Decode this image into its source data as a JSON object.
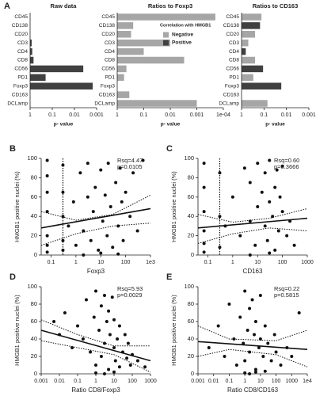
{
  "chart_data": [
    {
      "type": "bar",
      "panel": "A",
      "title": "Raw data",
      "xlabel": "p- value",
      "xlog": true,
      "categories": [
        "CD45",
        "CD138",
        "CD20",
        "CD3",
        "CD4",
        "CD8",
        "CD56",
        "PD1",
        "Foxp3",
        "CD163",
        "DCLamp"
      ],
      "xlim": [
        1,
        0.001
      ],
      "xticks": [
        1,
        0.1,
        0.01,
        0.001
      ],
      "series": [
        {
          "color": "#a6a6a6",
          "values": [
            null,
            null,
            null,
            null,
            null,
            null,
            null,
            null,
            null,
            null,
            null
          ]
        },
        {
          "color": "#404040",
          "values": [
            null,
            null,
            null,
            0.85,
            0.8,
            0.7,
            0.004,
            0.2,
            0.0015,
            null,
            null
          ]
        }
      ]
    },
    {
      "type": "bar",
      "title": "Ratios to Foxp3",
      "xlabel": "p- value",
      "xlog": true,
      "categories": [
        "CD45",
        "CD138",
        "CD20",
        "CD3",
        "CD4",
        "CD8",
        "CD56",
        "PD1",
        "Foxp3",
        "CD163",
        "DCLamp"
      ],
      "xlim": [
        1,
        0.0001
      ],
      "xticks": [
        1,
        0.1,
        0.01,
        0.001,
        {
          "value": 0.0001,
          "label": "1e-04"
        }
      ],
      "legend": {
        "title": "Correlation with HMGB1",
        "items": [
          {
            "name": "Negative",
            "color": "#a6a6a6"
          },
          {
            "name": "Positive",
            "color": "#404040"
          }
        ]
      },
      "series": [
        {
          "color": "#a6a6a6",
          "values": [
            0.0002,
            0.25,
            0.3,
            0.01,
            0.1,
            0.003,
            0.45,
            0.55,
            null,
            0.35,
            0.001
          ]
        },
        {
          "color": "#404040",
          "values": [
            null,
            null,
            null,
            null,
            null,
            null,
            null,
            null,
            null,
            null,
            null
          ]
        }
      ]
    },
    {
      "type": "bar",
      "title": "Ratios to CD163",
      "xlabel": "p- value",
      "xlog": true,
      "categories": [
        "CD45",
        "CD138",
        "CD20",
        "CD3",
        "CD4",
        "CD8",
        "CD56",
        "PD1",
        "Foxp3",
        "CD163",
        "DCLamp"
      ],
      "xlim": [
        1,
        0.001
      ],
      "xticks": [
        1,
        0.1,
        0.01,
        0.001
      ],
      "series": [
        {
          "color": "#a6a6a6",
          "values": [
            0.13,
            null,
            0.25,
            0.5,
            null,
            0.25,
            null,
            0.3,
            null,
            null,
            0.07
          ]
        },
        {
          "color": "#404040",
          "values": [
            null,
            0.15,
            null,
            null,
            0.65,
            null,
            0.11,
            null,
            0.017,
            null,
            null
          ]
        }
      ]
    },
    {
      "type": "scatter",
      "panel": "B",
      "xlabel": "Foxp3",
      "ylabel": "HMGB1 positive nuclei (%)",
      "xlog": true,
      "xlim": [
        0.04,
        1000
      ],
      "xticks": [
        0.1,
        1,
        10,
        100,
        {
          "value": 1000,
          "label": "1e3"
        }
      ],
      "ylim": [
        0,
        100
      ],
      "yticks": [
        0,
        20,
        40,
        60,
        80,
        100
      ],
      "vline": 0.3,
      "annotations": [
        "Rsq=4.47",
        "p=0.0105"
      ],
      "x": [
        0.07,
        0.07,
        0.07,
        0.07,
        0.07,
        0.07,
        0.07,
        0.3,
        0.3,
        0.3,
        0.3,
        0.3,
        0.5,
        0.8,
        1,
        1.5,
        2,
        3,
        3,
        4,
        5,
        6,
        8,
        10,
        12,
        15,
        18,
        20,
        25,
        30,
        40,
        50,
        60,
        70,
        80,
        100,
        150,
        200,
        300,
        500,
        2,
        10,
        50
      ],
      "y": [
        98,
        82,
        65,
        45,
        20,
        10,
        3,
        93,
        65,
        40,
        15,
        5,
        30,
        55,
        10,
        85,
        25,
        95,
        60,
        15,
        45,
        70,
        5,
        88,
        35,
        62,
        20,
        95,
        50,
        8,
        75,
        30,
        90,
        55,
        15,
        65,
        40,
        85,
        25,
        98,
        0,
        2,
        1
      ],
      "fit": {
        "x": [
          0.04,
          1000
        ],
        "y": [
          28,
          48
        ]
      },
      "ci_upper": {
        "x": [
          0.04,
          1,
          30,
          1000
        ],
        "y": [
          45,
          36,
          42,
          62
        ]
      },
      "ci_lower": {
        "x": [
          0.04,
          1,
          30,
          1000
        ],
        "y": [
          10,
          22,
          30,
          33
        ]
      }
    },
    {
      "type": "scatter",
      "panel": "C",
      "xlabel": "CD163",
      "ylabel": "HMGB1 positive nuclei (%)",
      "xlog": true,
      "xlim": [
        0.04,
        1000
      ],
      "xticks": [
        0.1,
        1,
        10,
        100,
        1000
      ],
      "ylim": [
        0,
        100
      ],
      "yticks": [
        0,
        20,
        40,
        60,
        80,
        100
      ],
      "vline": 0.3,
      "annotations": [
        "Rsq=0.60",
        "p=0.3666"
      ],
      "x": [
        0.07,
        0.07,
        0.07,
        0.07,
        0.07,
        0.07,
        0.3,
        0.3,
        0.3,
        1,
        2,
        3,
        5,
        5,
        8,
        10,
        10,
        15,
        20,
        20,
        25,
        30,
        30,
        40,
        50,
        50,
        60,
        70,
        80,
        100,
        100,
        150,
        200,
        300,
        5,
        30,
        0.5
      ],
      "y": [
        95,
        70,
        45,
        25,
        12,
        3,
        85,
        40,
        8,
        60,
        20,
        90,
        35,
        75,
        10,
        95,
        50,
        65,
        30,
        85,
        15,
        98,
        55,
        40,
        70,
        5,
        88,
        25,
        60,
        45,
        92,
        20,
        35,
        10,
        0,
        2,
        30
      ],
      "fit": {
        "x": [
          0.04,
          1000
        ],
        "y": [
          28,
          38
        ]
      },
      "ci_upper": {
        "x": [
          0.04,
          1,
          30,
          1000
        ],
        "y": [
          42,
          34,
          38,
          48
        ]
      },
      "ci_lower": {
        "x": [
          0.04,
          1,
          30,
          1000
        ],
        "y": [
          12,
          22,
          28,
          25
        ]
      }
    },
    {
      "type": "scatter",
      "panel": "D",
      "xlabel": "Ratio CD8/Foxp3",
      "ylabel": "HMGB1 positive nuclei (%)",
      "xlog": true,
      "xlim": [
        0.001,
        1000
      ],
      "xticks": [
        0.001,
        0.01,
        0.1,
        1,
        10,
        100,
        1000
      ],
      "ylim": [
        0,
        100
      ],
      "yticks": [
        0,
        20,
        40,
        60,
        80,
        100
      ],
      "annotations": [
        "Rsq=5.93",
        "p=0.0029"
      ],
      "x": [
        0.005,
        0.01,
        0.02,
        0.05,
        0.1,
        0.2,
        0.3,
        0.5,
        0.8,
        1,
        1,
        1.5,
        2,
        2,
        3,
        3,
        4,
        5,
        5,
        6,
        8,
        10,
        10,
        12,
        15,
        20,
        20,
        30,
        40,
        50,
        60,
        80,
        100,
        200,
        500,
        3,
        10,
        1
      ],
      "y": [
        60,
        45,
        70,
        30,
        55,
        40,
        85,
        25,
        65,
        95,
        10,
        50,
        78,
        20,
        90,
        35,
        60,
        5,
        72,
        45,
        88,
        30,
        62,
        15,
        40,
        55,
        8,
        25,
        45,
        18,
        35,
        10,
        22,
        15,
        8,
        0,
        2,
        1
      ],
      "fit": {
        "x": [
          0.001,
          1000
        ],
        "y": [
          50,
          15
        ]
      },
      "ci_upper": {
        "x": [
          0.001,
          0.1,
          10,
          1000
        ],
        "y": [
          62,
          45,
          32,
          32
        ]
      },
      "ci_lower": {
        "x": [
          0.001,
          0.1,
          10,
          1000
        ],
        "y": [
          38,
          30,
          22,
          2
        ]
      }
    },
    {
      "type": "scatter",
      "panel": "E",
      "xlabel": "Ratio CD8/CD163",
      "ylabel": "HMGB1 positive nuclei (%)",
      "xlog": true,
      "xlim": [
        0.001,
        10000
      ],
      "xticks": [
        0.001,
        0.01,
        0.1,
        1,
        10,
        100,
        1000,
        {
          "value": 10000,
          "label": "1e4"
        }
      ],
      "ylim": [
        0,
        100
      ],
      "yticks": [
        0,
        20,
        40,
        60,
        80,
        100
      ],
      "annotations": [
        "Rsq=0.22",
        "p=0.5815"
      ],
      "x": [
        0.005,
        0.02,
        0.05,
        0.1,
        0.2,
        0.3,
        0.5,
        0.8,
        1,
        1,
        1.5,
        2,
        2,
        3,
        4,
        5,
        5,
        8,
        10,
        10,
        15,
        20,
        30,
        50,
        80,
        100,
        200,
        500,
        1000,
        3000,
        2,
        5,
        1,
        20
      ],
      "y": [
        30,
        55,
        20,
        80,
        40,
        10,
        65,
        35,
        95,
        15,
        50,
        75,
        25,
        85,
        45,
        5,
        60,
        30,
        90,
        40,
        20,
        55,
        35,
        15,
        45,
        25,
        10,
        30,
        20,
        70,
        0,
        2,
        1,
        3
      ],
      "fit": {
        "x": [
          0.001,
          10000
        ],
        "y": [
          37,
          28
        ]
      },
      "ci_upper": {
        "x": [
          0.001,
          0.1,
          100,
          10000
        ],
        "y": [
          55,
          40,
          38,
          50
        ]
      },
      "ci_lower": {
        "x": [
          0.001,
          0.1,
          100,
          10000
        ],
        "y": [
          20,
          28,
          22,
          8
        ]
      }
    }
  ]
}
